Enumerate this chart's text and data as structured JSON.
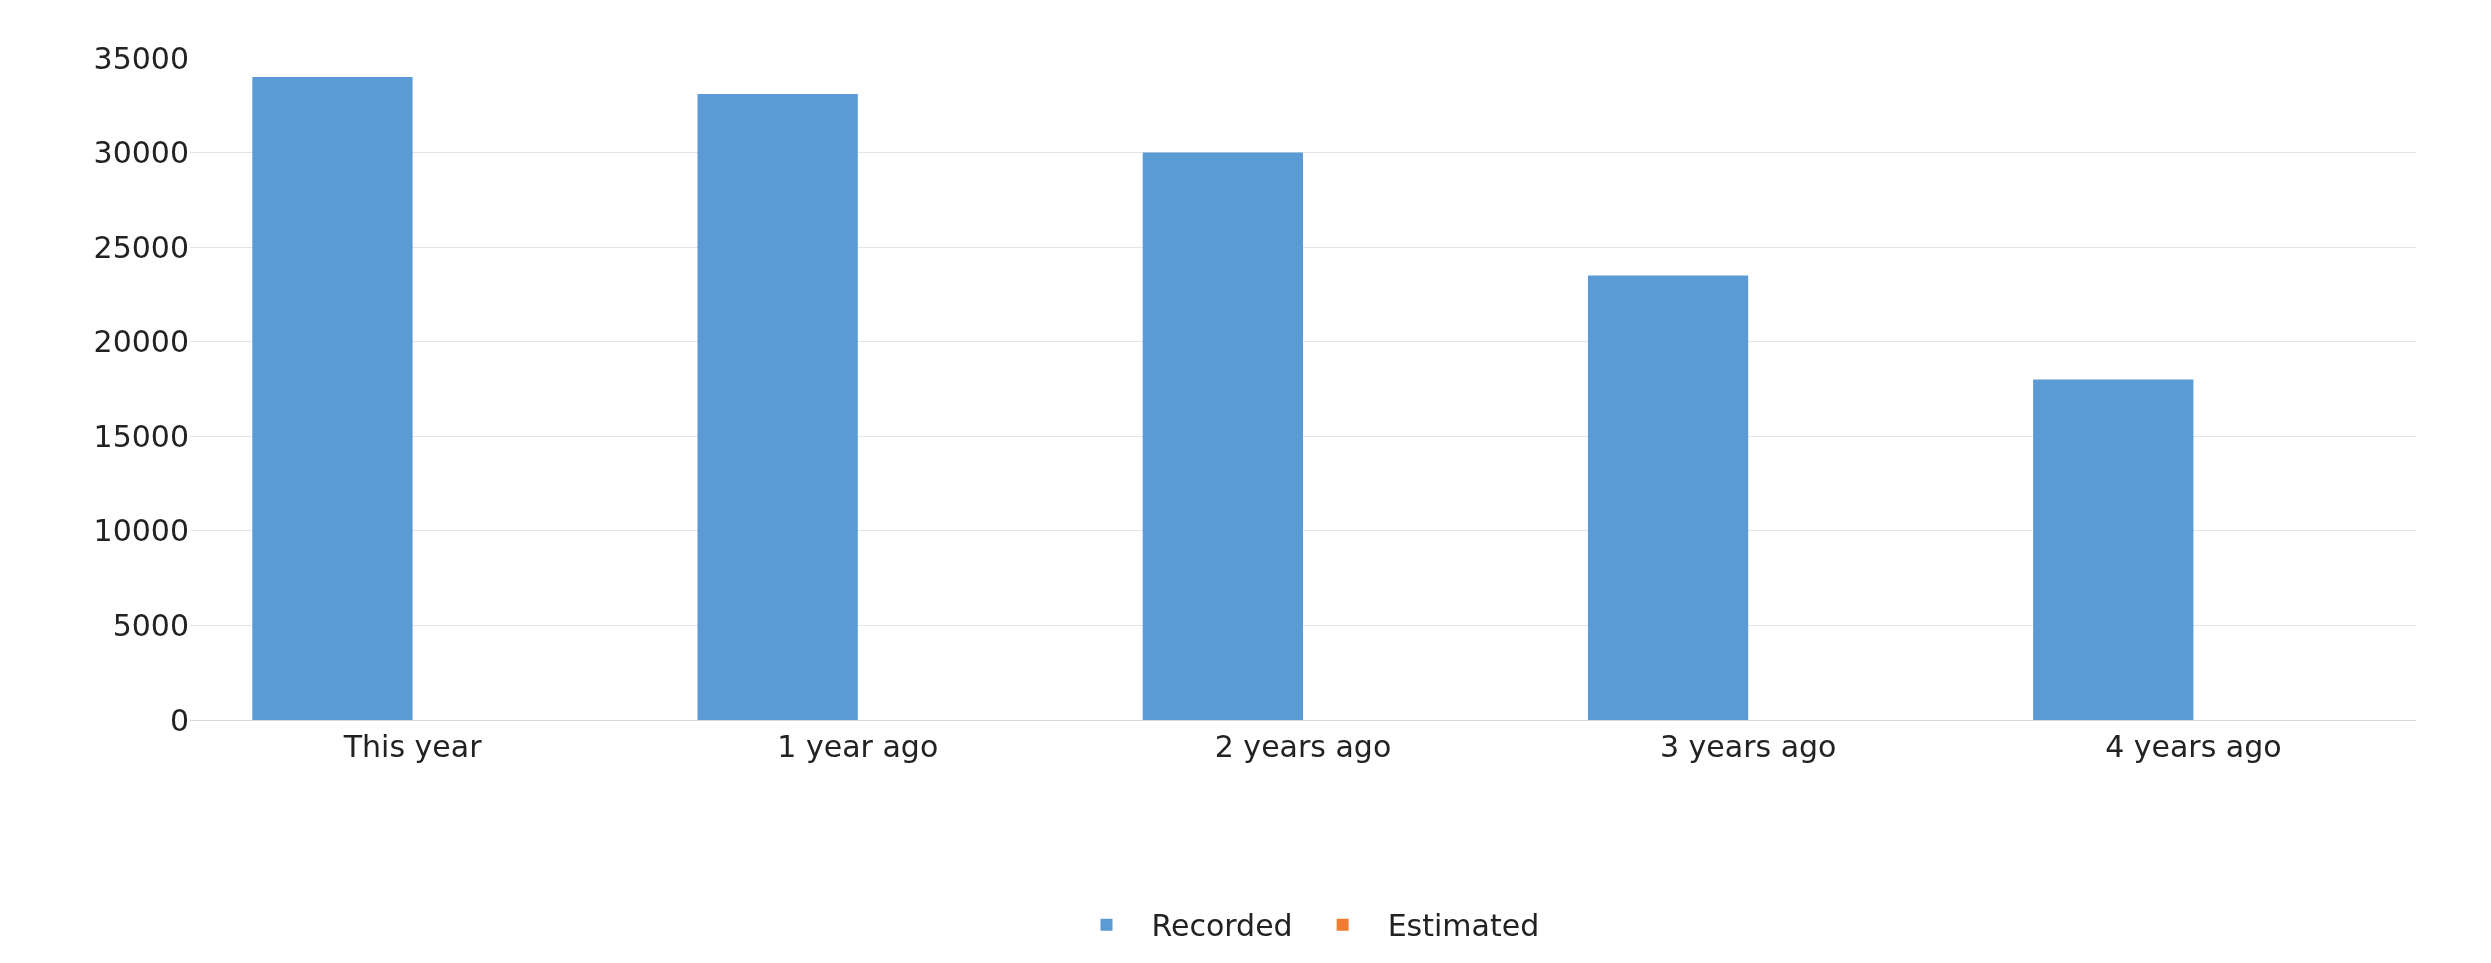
{
  "chart_data": {
    "type": "bar",
    "categories": [
      "This year",
      "1 year ago",
      "2 years ago",
      "3 years ago",
      "4 years ago"
    ],
    "series": [
      {
        "name": "Recorded",
        "color": "#5b9bd5",
        "values": [
          34000,
          33100,
          30000,
          23500,
          18000
        ]
      },
      {
        "name": "Estimated",
        "color": "#ed7d31",
        "values": [
          null,
          null,
          null,
          null,
          null
        ]
      }
    ],
    "ylim": [
      0,
      35000
    ],
    "yticks": [
      0,
      5000,
      10000,
      15000,
      20000,
      25000,
      30000,
      35000
    ],
    "grid": "y",
    "legend": "bottom"
  }
}
